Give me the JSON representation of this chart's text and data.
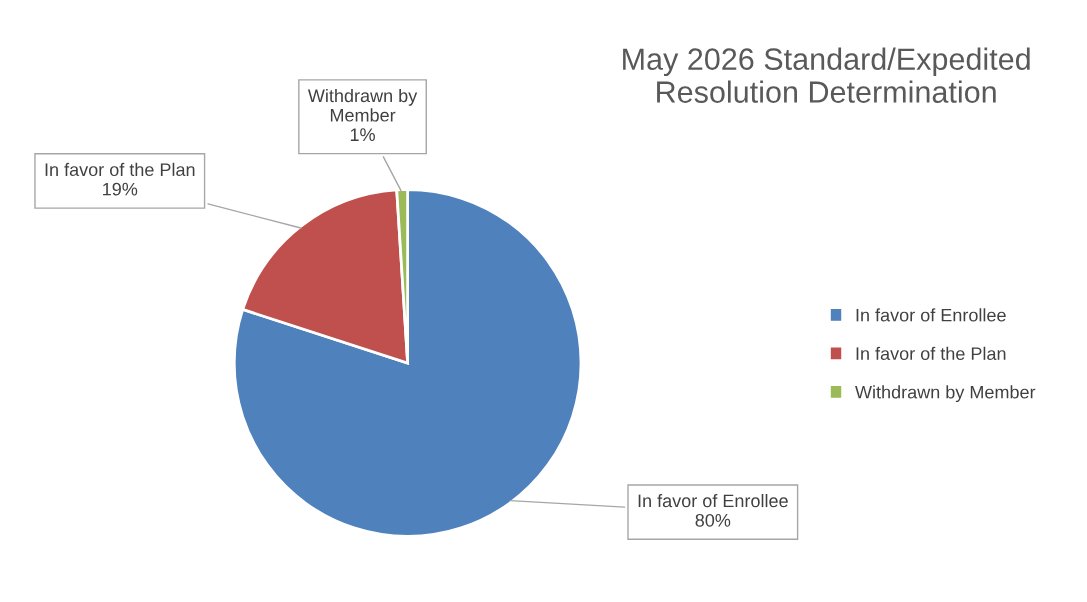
{
  "chart_data": {
    "type": "pie",
    "title": "May 2026 Standard/Expedited\nResolution Determination",
    "categories": [
      "In favor of Enrollee",
      "In favor of the Plan",
      "Withdrawn by Member"
    ],
    "values": [
      80,
      19,
      1
    ],
    "colors": [
      "#4f81bd",
      "#c0504d",
      "#9bbb59"
    ],
    "value_labels": [
      "In favor of Enrollee\n80%",
      "In favor of the Plan\n19%",
      "Withdrawn by\nMember\n1%"
    ],
    "legend": "right"
  }
}
